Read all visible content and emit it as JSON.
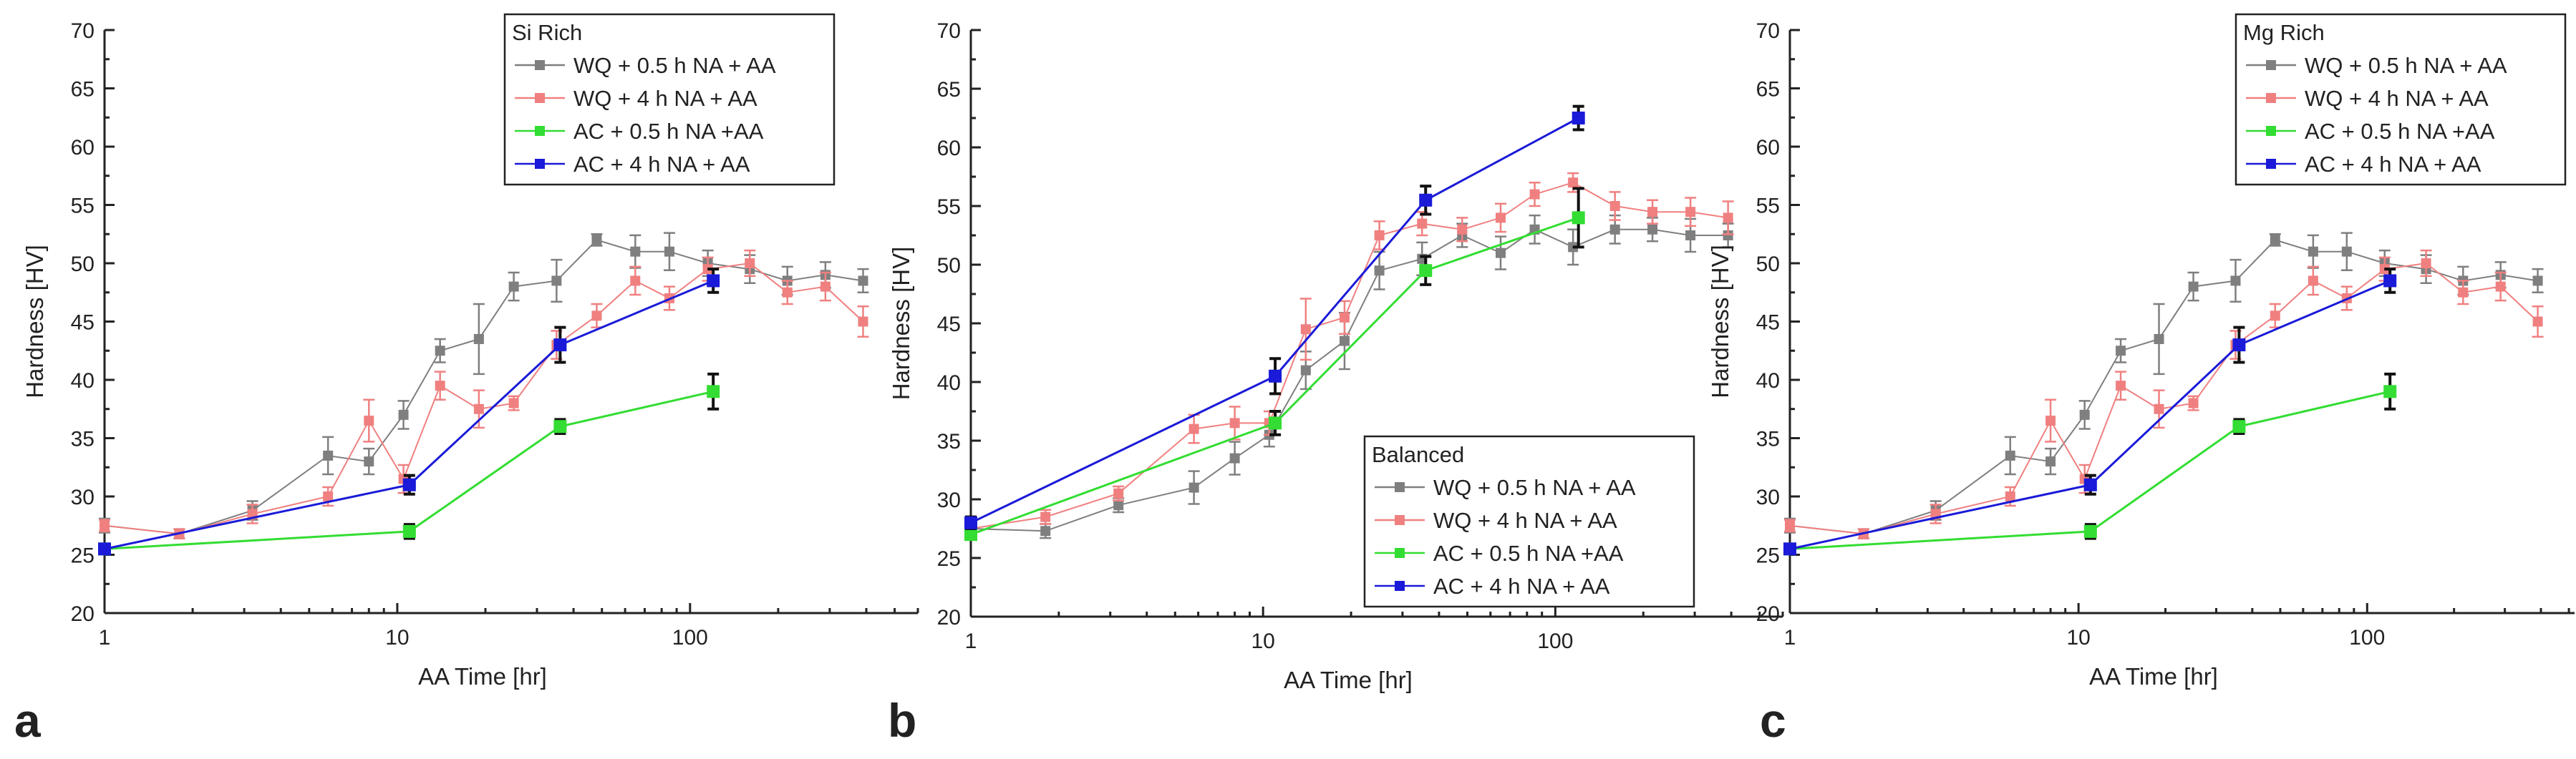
{
  "figure": {
    "colors": {
      "WQ05": "#7f7f7f",
      "WQ4": "#f08080",
      "AC05": "#33dd33",
      "AC4": "#1a1ad8",
      "ink": "#222222"
    }
  },
  "chart_data": [
    {
      "type": "scatter",
      "panel_label": "a",
      "legend_title": "Si Rich",
      "legend_position": "top-right",
      "xlabel": "AA Time [hr]",
      "ylabel": "Hardness [HV]",
      "xscale": "log",
      "xlim": [
        1,
        600
      ],
      "ylim": [
        20,
        70
      ],
      "xticks": [
        1,
        10,
        100
      ],
      "xtick_labels": [
        "1",
        "10",
        "100"
      ],
      "yticks": [
        20,
        25,
        30,
        35,
        40,
        45,
        50,
        55,
        60,
        65,
        70
      ],
      "ytick_labels": [
        "20",
        "25",
        "30",
        "35",
        "40",
        "45",
        "50",
        "55",
        "60",
        "65",
        "70"
      ],
      "series": [
        {
          "name": "WQ + 0.5 h NA + AA",
          "color_key": "WQ05",
          "x": [
            1,
            1.8,
            3.2,
            5.8,
            8,
            10.5,
            14,
            19,
            25,
            35,
            48,
            65,
            85,
            115,
            160,
            215,
            290,
            390
          ],
          "y": [
            27.5,
            26.8,
            28.8,
            33.5,
            33,
            37,
            42.5,
            43.5,
            48,
            48.5,
            52,
            51,
            51,
            50,
            49.5,
            48.5,
            49,
            48.5
          ],
          "err": [
            0.6,
            0.4,
            0.8,
            1.6,
            1.1,
            1.2,
            1,
            3,
            1.2,
            1.8,
            0.5,
            1.4,
            1.6,
            1.1,
            1.2,
            1.2,
            1.1,
            1
          ]
        },
        {
          "name": "WQ + 4 h NA + AA",
          "color_key": "WQ4",
          "x": [
            1,
            1.8,
            3.2,
            5.8,
            8,
            10.5,
            14,
            19,
            25,
            35,
            48,
            65,
            85,
            115,
            160,
            215,
            290,
            390
          ],
          "y": [
            27.5,
            26.8,
            28.5,
            30,
            36.5,
            31.5,
            39.5,
            37.5,
            38,
            43,
            45.5,
            48.5,
            47,
            49.5,
            50,
            47.5,
            48,
            45
          ],
          "err": [
            0.5,
            0.4,
            0.8,
            0.8,
            1.8,
            1.2,
            1.2,
            1.6,
            0.6,
            1.2,
            1,
            1.2,
            1,
            1,
            1.1,
            1,
            1.2,
            1.3
          ]
        },
        {
          "name": "AC + 0.5 h NA +AA",
          "color_key": "AC05",
          "x": [
            1,
            11,
            36,
            120
          ],
          "y": [
            25.5,
            27,
            36,
            39
          ],
          "err": [
            0.4,
            0.6,
            0.6,
            1.5
          ]
        },
        {
          "name": "AC + 4 h NA + AA",
          "color_key": "AC4",
          "x": [
            1,
            11,
            36,
            120
          ],
          "y": [
            25.5,
            31,
            43,
            48.5
          ],
          "err": [
            0.4,
            0.8,
            1.5,
            1
          ]
        }
      ]
    },
    {
      "type": "scatter",
      "panel_label": "b",
      "legend_title": "Balanced",
      "legend_position": "bottom-right",
      "xlabel": "AA Time [hr]",
      "ylabel": "Hardness [HV]",
      "xscale": "log",
      "xlim": [
        1,
        600
      ],
      "ylim": [
        20,
        70
      ],
      "xticks": [
        1,
        10,
        100
      ],
      "xtick_labels": [
        "1",
        "10",
        "100"
      ],
      "yticks": [
        20,
        25,
        30,
        35,
        40,
        45,
        50,
        55,
        60,
        65,
        70
      ],
      "ytick_labels": [
        "20",
        "25",
        "30",
        "35",
        "40",
        "45",
        "50",
        "55",
        "60",
        "65",
        "70"
      ],
      "series": [
        {
          "name": "WQ + 0.5 h NA + AA",
          "color_key": "WQ05",
          "x": [
            1,
            1.8,
            3.2,
            5.8,
            8,
            10.5,
            14,
            19,
            25,
            35,
            48,
            65,
            85,
            115,
            160,
            215,
            290,
            390
          ],
          "y": [
            27.5,
            27.3,
            29.5,
            31,
            33.5,
            35.5,
            41,
            43.5,
            49.5,
            50.5,
            52.5,
            51,
            53,
            51.5,
            53,
            53,
            52.5,
            52.5
          ],
          "err": [
            0.6,
            0.6,
            0.6,
            1.4,
            1.4,
            1,
            1.6,
            2.4,
            1.6,
            1.4,
            1,
            1.4,
            1.2,
            1.5,
            1.2,
            1,
            1.4,
            1
          ]
        },
        {
          "name": "WQ + 4 h NA + AA",
          "color_key": "WQ4",
          "x": [
            1,
            1.8,
            3.2,
            5.8,
            8,
            10.5,
            14,
            19,
            25,
            35,
            48,
            65,
            85,
            115,
            160,
            215,
            290,
            390
          ],
          "y": [
            27.5,
            28.5,
            30.5,
            36,
            36.5,
            36.5,
            44.5,
            45.5,
            52.5,
            53.5,
            53,
            54,
            56,
            57,
            55,
            54.5,
            54.5,
            54
          ],
          "err": [
            0.6,
            0.6,
            0.6,
            1.2,
            1.4,
            1,
            2.6,
            1.4,
            1.2,
            1,
            1,
            1.2,
            1,
            0.8,
            1.2,
            1,
            1.2,
            1.4
          ]
        },
        {
          "name": "AC + 0.5 h NA +AA",
          "color_key": "AC05",
          "x": [
            1,
            11,
            36,
            120
          ],
          "y": [
            27,
            36.5,
            49.5,
            54
          ],
          "err": [
            0.4,
            1,
            1.2,
            2.5
          ]
        },
        {
          "name": "AC + 4 h NA + AA",
          "color_key": "AC4",
          "x": [
            1,
            11,
            36,
            120
          ],
          "y": [
            28,
            40.5,
            55.5,
            62.5
          ],
          "err": [
            0.5,
            1.5,
            1.2,
            1
          ]
        }
      ]
    },
    {
      "type": "scatter",
      "panel_label": "c",
      "legend_title": "Mg Rich",
      "legend_position": "top-right",
      "xlabel": "AA Time [hr]",
      "ylabel": "Hardness [HV]",
      "xscale": "log",
      "xlim": [
        1,
        600
      ],
      "ylim": [
        20,
        70
      ],
      "xticks": [
        1,
        10,
        100
      ],
      "xtick_labels": [
        "1",
        "10",
        "100"
      ],
      "yticks": [
        20,
        25,
        30,
        35,
        40,
        45,
        50,
        55,
        60,
        65,
        70
      ],
      "ytick_labels": [
        "20",
        "25",
        "30",
        "35",
        "40",
        "45",
        "50",
        "55",
        "60",
        "65",
        "70"
      ],
      "series": [
        {
          "name": "WQ + 0.5 h NA + AA",
          "color_key": "WQ05",
          "x": [
            1,
            1.8,
            3.2,
            5.8,
            8,
            10.5,
            14,
            19,
            25,
            35,
            48,
            65,
            85,
            115,
            160,
            215,
            290,
            390
          ],
          "y": [
            27.5,
            26.8,
            28.8,
            33.5,
            33,
            37,
            42.5,
            43.5,
            48,
            48.5,
            52,
            51,
            51,
            50,
            49.5,
            48.5,
            49,
            48.5
          ],
          "err": [
            0.6,
            0.4,
            0.8,
            1.6,
            1.1,
            1.2,
            1,
            3,
            1.2,
            1.8,
            0.5,
            1.4,
            1.6,
            1.1,
            1.2,
            1.2,
            1.1,
            1
          ]
        },
        {
          "name": "WQ + 4 h NA + AA",
          "color_key": "WQ4",
          "x": [
            1,
            1.8,
            3.2,
            5.8,
            8,
            10.5,
            14,
            19,
            25,
            35,
            48,
            65,
            85,
            115,
            160,
            215,
            290,
            390
          ],
          "y": [
            27.5,
            26.8,
            28.5,
            30,
            36.5,
            31.5,
            39.5,
            37.5,
            38,
            43,
            45.5,
            48.5,
            47,
            49.5,
            50,
            47.5,
            48,
            45
          ],
          "err": [
            0.5,
            0.4,
            0.8,
            0.8,
            1.8,
            1.2,
            1.2,
            1.6,
            0.6,
            1.2,
            1,
            1.2,
            1,
            1,
            1.1,
            1,
            1.2,
            1.3
          ]
        },
        {
          "name": "AC + 0.5 h NA +AA",
          "color_key": "AC05",
          "x": [
            1,
            11,
            36,
            120
          ],
          "y": [
            25.5,
            27,
            36,
            39
          ],
          "err": [
            0.4,
            0.6,
            0.6,
            1.5
          ]
        },
        {
          "name": "AC + 4 h NA + AA",
          "color_key": "AC4",
          "x": [
            1,
            11,
            36,
            120
          ],
          "y": [
            25.5,
            31,
            43,
            48.5
          ],
          "err": [
            0.4,
            0.8,
            1.5,
            1
          ]
        }
      ]
    }
  ]
}
